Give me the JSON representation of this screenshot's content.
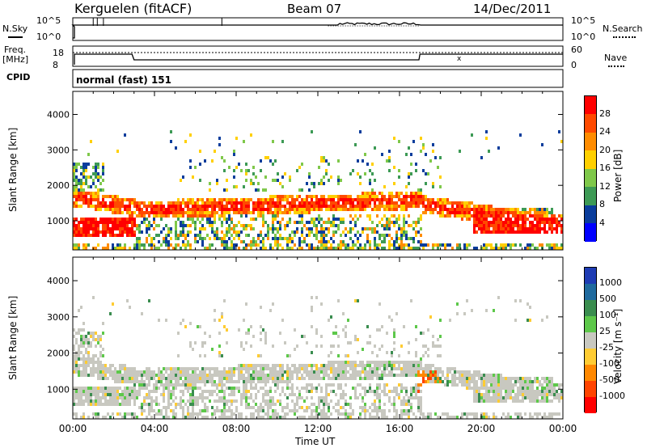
{
  "header": {
    "station": "Kerguelen (fitACF)",
    "beam": "Beam 07",
    "date": "14/Dec/2011"
  },
  "noise_panel": {
    "left_label": "N.Sky",
    "right_label": "N.Search",
    "left_ticks": [
      "10^5",
      "10^0"
    ],
    "right_ticks": [
      "10^5",
      "10^0"
    ]
  },
  "freq_panel": {
    "left_label_line1": "Freq.",
    "left_label_line2": "[MHz]",
    "left_ticks": [
      "18",
      "8"
    ],
    "right_ticks": [
      "60",
      "0"
    ],
    "right_label": "Nave",
    "marker": "x"
  },
  "cpid": {
    "label": "CPID",
    "program": "normal (fast) 151"
  },
  "x_axis": {
    "label": "Time UT",
    "ticks": [
      "00:00",
      "04:00",
      "08:00",
      "12:00",
      "16:00",
      "20:00",
      "00:00"
    ]
  },
  "chart_data": [
    {
      "type": "heatmap",
      "name": "power",
      "ylabel": "Slant Range [km]",
      "yticks": [
        "1000",
        "2000",
        "3000",
        "4000"
      ],
      "ylim": [
        180,
        4650
      ],
      "xlim_hours": [
        0,
        24
      ],
      "colorbar": {
        "label": "Power [dB]",
        "ticks": [
          "28",
          "24",
          "20",
          "16",
          "12",
          "8",
          "4"
        ],
        "colors": [
          "#ff0000",
          "#ff4a00",
          "#ff8c00",
          "#ffd000",
          "#7fc84a",
          "#3d9a55",
          "#0a3d9c",
          "#0000ff"
        ]
      }
    },
    {
      "type": "heatmap",
      "name": "velocity",
      "ylabel": "Slant Range [km]",
      "yticks": [
        "1000",
        "2000",
        "3000",
        "4000"
      ],
      "ylim": [
        180,
        4650
      ],
      "xlim_hours": [
        0,
        24
      ],
      "colorbar": {
        "label": "Velocity [m s⁻¹]",
        "ticks": [
          "1000",
          "500",
          "100",
          "25",
          "-25",
          "-100",
          "-500",
          "-1000"
        ],
        "colors": [
          "#1e3cb4",
          "#1f6a9e",
          "#3a8d4f",
          "#5dc84a",
          "#c8c8c0",
          "#ffcc33",
          "#ff8800",
          "#ff4400",
          "#ff0000"
        ]
      }
    }
  ]
}
